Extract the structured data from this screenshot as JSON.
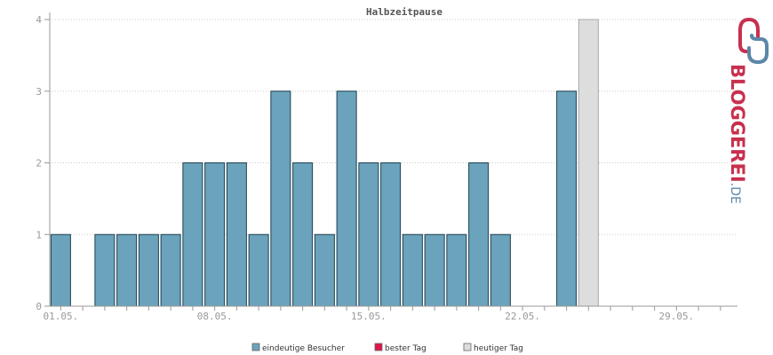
{
  "chart_data": {
    "type": "bar",
    "title": "Halbzeitpause",
    "ylim": [
      0,
      4
    ],
    "y_ticks": [
      "0",
      "1",
      "2",
      "3",
      "4"
    ],
    "x_tick_labels": [
      {
        "day": 1,
        "label": "01.05."
      },
      {
        "day": 8,
        "label": "08.05."
      },
      {
        "day": 15,
        "label": "15.05."
      },
      {
        "day": 22,
        "label": "22.05."
      },
      {
        "day": 29,
        "label": "29.05."
      }
    ],
    "days_shown": 31,
    "series": [
      {
        "name": "eindeutige Besucher",
        "color": "#6aa3bb",
        "days": [
          1,
          2,
          3,
          4,
          5,
          6,
          7,
          8,
          9,
          10,
          11,
          12,
          13,
          14,
          15,
          16,
          17,
          18,
          19,
          20,
          21,
          22,
          23,
          24
        ],
        "values": [
          1,
          0,
          1,
          1,
          1,
          1,
          2,
          2,
          2,
          1,
          3,
          2,
          1,
          3,
          2,
          2,
          1,
          1,
          1,
          2,
          1,
          0,
          0,
          3
        ]
      },
      {
        "name": "heutiger Tag",
        "color": "#dddddd",
        "days": [
          25
        ],
        "values": [
          4
        ]
      }
    ],
    "grid": true,
    "legend": {
      "placement": "bottom-center",
      "items": [
        {
          "label": "eindeutige Besucher",
          "color": "#6aa3bb"
        },
        {
          "label": "bester Tag",
          "color": "#e0154a"
        },
        {
          "label": "heutiger Tag",
          "color": "#dddddd"
        }
      ]
    }
  },
  "logo": {
    "text_main": "BLOGGEREI",
    "text_suffix": ".DE",
    "color_red": "#c8304e",
    "color_blue": "#5b87a8"
  }
}
